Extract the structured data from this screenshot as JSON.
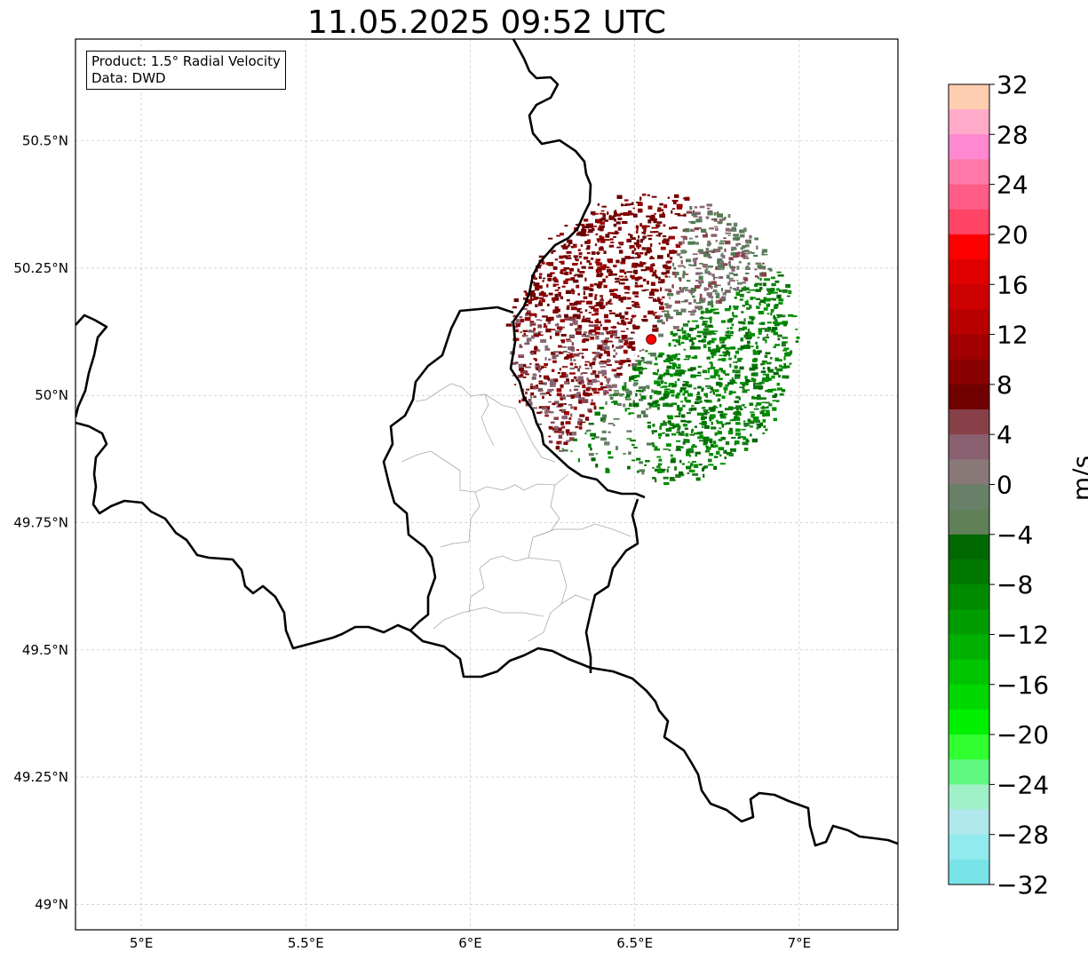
{
  "title": "11.05.2025 09:52 UTC",
  "legend": {
    "product": "Product: 1.5° Radial Velocity",
    "source": "Data: DWD"
  },
  "map": {
    "lon_range": [
      4.8,
      7.3
    ],
    "lat_range": [
      48.95,
      50.7
    ],
    "lon_ticks": [
      5.0,
      5.5,
      6.0,
      6.5,
      7.0
    ],
    "lon_tick_labels": [
      "5°E",
      "5.5°E",
      "6°E",
      "6.5°E",
      "7°E"
    ],
    "lat_ticks": [
      49.0,
      49.25,
      49.5,
      49.75,
      50.0,
      50.25,
      50.5
    ],
    "lat_tick_labels": [
      "49°N",
      "49.25°N",
      "49.5°N",
      "49.75°N",
      "50°N",
      "50.25°N",
      "50.5°N"
    ],
    "grid": true,
    "radar_site": {
      "lon": 6.55,
      "lat": 50.11,
      "color": "#ff0000"
    },
    "echo_radius_deg": 0.42
  },
  "colorbar": {
    "unit": "m/s",
    "min": -32,
    "max": 32,
    "tick_values": [
      32,
      28,
      24,
      20,
      16,
      12,
      8,
      4,
      0,
      -4,
      -8,
      -12,
      -16,
      -20,
      -24,
      -28,
      -32
    ],
    "tick_labels": [
      "32",
      "28",
      "24",
      "20",
      "16",
      "12",
      "8",
      "4",
      "0",
      "−4",
      "−8",
      "−12",
      "−16",
      "−20",
      "−24",
      "−28",
      "−32"
    ],
    "colors_top_to_bottom": [
      "#ffcdb0",
      "#ffaac8",
      "#ff88d0",
      "#ff78a8",
      "#ff5c88",
      "#ff4466",
      "#ff0000",
      "#e00000",
      "#cc0000",
      "#b80000",
      "#a00000",
      "#880000",
      "#700000",
      "#884048",
      "#886070",
      "#887878",
      "#688068",
      "#608058",
      "#006800",
      "#007800",
      "#008a00",
      "#009c00",
      "#00b000",
      "#00c400",
      "#00d800",
      "#00f000",
      "#30ff30",
      "#60f880",
      "#a0f0c8",
      "#b0e8ee",
      "#90eaee",
      "#78e4e8"
    ]
  }
}
